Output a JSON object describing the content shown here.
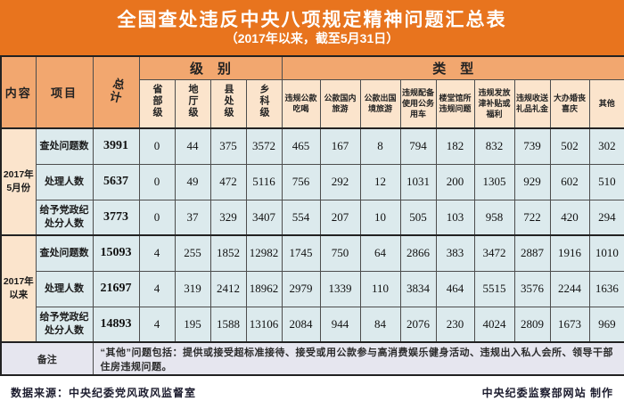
{
  "banner": {
    "title": "全国查处违反中央八项规定精神问题汇总表",
    "subtitle": "（2017年以来，截至5月31日）"
  },
  "colors": {
    "banner_orange": "#E8741E",
    "group_header_orange": "#F2A76F",
    "subheader_peach": "#FBE4CC",
    "data_blue": "#DCEAED",
    "note_lavender": "#E6E6EF",
    "border_dark": "#222222"
  },
  "table": {
    "corner": {
      "content": "内容",
      "project": "项目",
      "total": "总计"
    },
    "groups": {
      "level": "级别",
      "type": "类型"
    },
    "level_columns": [
      "省部级",
      "地厅级",
      "县处级",
      "乡科级"
    ],
    "type_columns": [
      "违规公款吃喝",
      "公款国内旅游",
      "公款出国境旅游",
      "违规配备使用公务用车",
      "楼堂馆所违规问题",
      "违规发放津补贴或福利",
      "违规收送礼品礼金",
      "大办婚丧喜庆",
      "其他"
    ],
    "sections": [
      {
        "period": "2017年 5月份",
        "rows": [
          {
            "label": "查处问题数",
            "total": "3991",
            "values": [
              "0",
              "44",
              "375",
              "3572",
              "465",
              "167",
              "8",
              "794",
              "182",
              "832",
              "739",
              "502",
              "302"
            ]
          },
          {
            "label": "处理人数",
            "total": "5637",
            "values": [
              "0",
              "49",
              "472",
              "5116",
              "756",
              "292",
              "12",
              "1031",
              "200",
              "1305",
              "929",
              "602",
              "510"
            ]
          },
          {
            "label": "给予党政纪处分人数",
            "total": "3773",
            "values": [
              "0",
              "37",
              "329",
              "3407",
              "554",
              "207",
              "10",
              "505",
              "103",
              "958",
              "722",
              "420",
              "294"
            ]
          }
        ]
      },
      {
        "period": "2017年 以来",
        "rows": [
          {
            "label": "查处问题数",
            "total": "15093",
            "values": [
              "4",
              "255",
              "1852",
              "12982",
              "1745",
              "750",
              "64",
              "2866",
              "383",
              "3472",
              "2887",
              "1916",
              "1010"
            ]
          },
          {
            "label": "处理人数",
            "total": "21697",
            "values": [
              "4",
              "319",
              "2412",
              "18962",
              "2979",
              "1339",
              "110",
              "3834",
              "464",
              "5515",
              "3576",
              "2244",
              "1636"
            ]
          },
          {
            "label": "给予党政纪处分人数",
            "total": "14893",
            "values": [
              "4",
              "195",
              "1588",
              "13106",
              "2084",
              "944",
              "84",
              "2076",
              "230",
              "4024",
              "2809",
              "1673",
              "969"
            ]
          }
        ]
      }
    ],
    "note_label": "备注",
    "note_text": "“其他”问题包括：提供或接受超标准接待、接受或用公款参与高消费娱乐健身活动、违规出入私人会所、领导干部住房违规问题。"
  },
  "footer": {
    "source": "数据来源：中央纪委党风政风监督室",
    "credit": "中央纪委监察部网站  制作"
  },
  "chart_data": {
    "type": "table",
    "title": "全国查处违反中央八项规定精神问题汇总表",
    "subtitle": "（2017年以来，截至5月31日）",
    "column_groups": {
      "级别": [
        "省部级",
        "地厅级",
        "县处级",
        "乡科级"
      ],
      "类型": [
        "违规公款吃喝",
        "公款国内旅游",
        "公款出国境旅游",
        "违规配备使用公务用车",
        "楼堂馆所违规问题",
        "违规发放津补贴或福利",
        "违规收送礼品礼金",
        "大办婚丧喜庆",
        "其他"
      ]
    },
    "columns": [
      "内容",
      "项目",
      "总计",
      "省部级",
      "地厅级",
      "县处级",
      "乡科级",
      "违规公款吃喝",
      "公款国内旅游",
      "公款出国境旅游",
      "违规配备使用公务用车",
      "楼堂馆所违规问题",
      "违规发放津补贴或福利",
      "违规收送礼品礼金",
      "大办婚丧喜庆",
      "其他"
    ],
    "rows": [
      [
        "2017年5月份",
        "查处问题数",
        3991,
        0,
        44,
        375,
        3572,
        465,
        167,
        8,
        794,
        182,
        832,
        739,
        502,
        302
      ],
      [
        "2017年5月份",
        "处理人数",
        5637,
        0,
        49,
        472,
        5116,
        756,
        292,
        12,
        1031,
        200,
        1305,
        929,
        602,
        510
      ],
      [
        "2017年5月份",
        "给予党政纪处分人数",
        3773,
        0,
        37,
        329,
        3407,
        554,
        207,
        10,
        505,
        103,
        958,
        722,
        420,
        294
      ],
      [
        "2017年以来",
        "查处问题数",
        15093,
        4,
        255,
        1852,
        12982,
        1745,
        750,
        64,
        2866,
        383,
        3472,
        2887,
        1916,
        1010
      ],
      [
        "2017年以来",
        "处理人数",
        21697,
        4,
        319,
        2412,
        18962,
        2979,
        1339,
        110,
        3834,
        464,
        5515,
        3576,
        2244,
        1636
      ],
      [
        "2017年以来",
        "给予党政纪处分人数",
        14893,
        4,
        195,
        1588,
        13106,
        2084,
        944,
        84,
        2076,
        230,
        4024,
        2809,
        1673,
        969
      ]
    ]
  }
}
